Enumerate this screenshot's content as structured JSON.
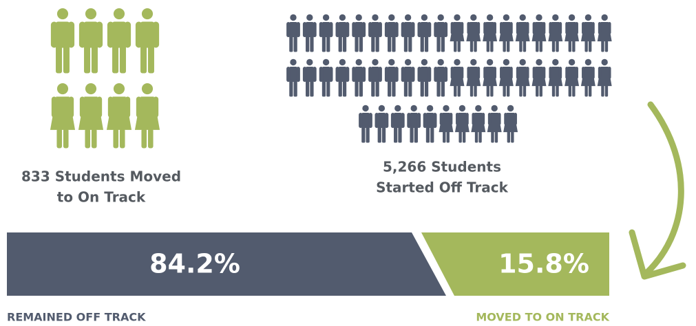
{
  "moved": {
    "line1": "833 Students Moved",
    "line2": "to On Track"
  },
  "started": {
    "line1": "5,266 Students",
    "line2": "Started Off Track"
  },
  "bar": {
    "remained": {
      "percent": "84.2%",
      "label": "REMAINED OFF TRACK"
    },
    "moved": {
      "percent": "15.8%",
      "label": "MOVED TO ON TRACK"
    }
  }
}
